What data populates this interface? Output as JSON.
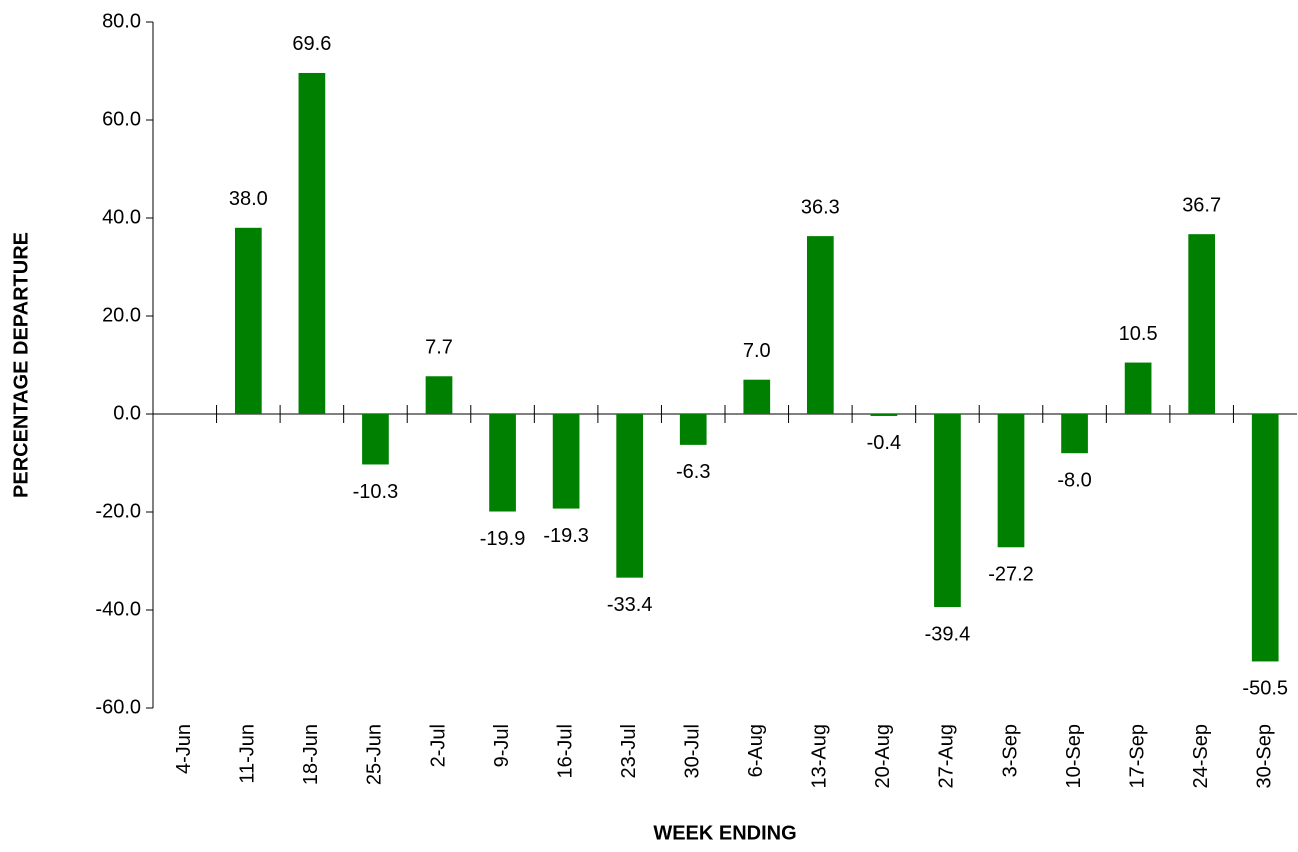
{
  "chart_data": {
    "type": "bar",
    "xlabel": "WEEK ENDING",
    "ylabel": "PERCENTAGE DEPARTURE",
    "categories": [
      "4-Jun",
      "11-Jun",
      "18-Jun",
      "25-Jun",
      "2-Jul",
      "9-Jul",
      "16-Jul",
      "23-Jul",
      "30-Jul",
      "6-Aug",
      "13-Aug",
      "20-Aug",
      "27-Aug",
      "3-Sep",
      "10-Sep",
      "17-Sep",
      "24-Sep",
      "30-Sep"
    ],
    "values": [
      null,
      38.0,
      69.6,
      -10.3,
      7.7,
      -19.9,
      -19.3,
      -33.4,
      -6.3,
      7.0,
      36.3,
      -0.4,
      -39.4,
      -27.2,
      -8.0,
      10.5,
      36.7,
      -50.5
    ],
    "value_labels": [
      null,
      "38.0",
      "69.6",
      "-10.3",
      "7.7",
      "-19.9",
      "-19.3",
      "-33.4",
      "-6.3",
      "7.0",
      "36.3",
      "-0.4",
      "-39.4",
      "-27.2",
      "-8.0",
      "10.5",
      "36.7",
      "-50.5"
    ],
    "color": "#008000",
    "ylim": [
      -60,
      80
    ],
    "yticks": [
      {
        "value": -60,
        "label": "-60.0"
      },
      {
        "value": -40,
        "label": "-40.0"
      },
      {
        "value": -20,
        "label": "-20.0"
      },
      {
        "value": 0,
        "label": "0.0"
      },
      {
        "value": 20,
        "label": "20.0"
      },
      {
        "value": 40,
        "label": "40.0"
      },
      {
        "value": 60,
        "label": "60.0"
      },
      {
        "value": 80,
        "label": "80.0"
      }
    ],
    "grid": false
  }
}
